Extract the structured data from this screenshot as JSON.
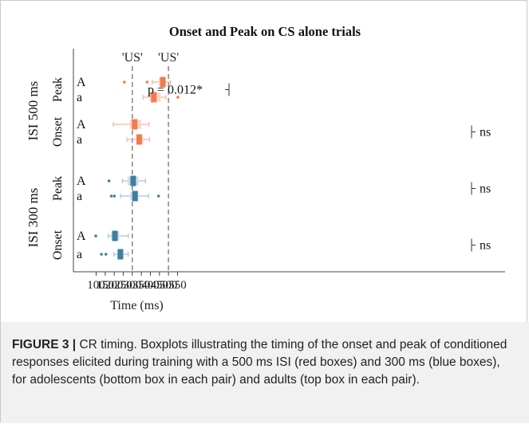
{
  "chart_data": {
    "type": "boxplot",
    "title": "Onset and Peak on CS alone trials",
    "xlabel": "Time (ms)",
    "xlim": [
      75,
      555
    ],
    "xticks": [
      100,
      150,
      200,
      250,
      300,
      350,
      400,
      450,
      500,
      550
    ],
    "reference_lines": [
      {
        "x": 300,
        "label": "'US'"
      },
      {
        "x": 500,
        "label": "'US'"
      }
    ],
    "groups": [
      {
        "label": "ISI 500 ms",
        "subgroups": [
          {
            "label": "Peak",
            "rows": [
              {
                "age": "A",
                "color": "red",
                "whisker": [
                  410,
                  510
                ],
                "box": [
                  448,
                  480
                ],
                "median": 469,
                "outliers": [
                  256,
                  382
                ]
              },
              {
                "age": "a",
                "color": "red",
                "whisker": [
                  360,
                  486
                ],
                "box": [
                  395,
                  457
                ],
                "median": 419,
                "outliers": [
                  552
                ]
              }
            ],
            "annotation": "p = 0.012*"
          },
          {
            "label": "Onset",
            "rows": [
              {
                "age": "A",
                "color": "red",
                "whisker": [
                  195,
                  392
                ],
                "box": [
                  286,
                  349
                ],
                "median": 313,
                "outliers": []
              },
              {
                "age": "a",
                "color": "red",
                "whisker": [
                  270,
                  396
                ],
                "box": [
                  322,
                  360
                ],
                "median": 338,
                "outliers": []
              }
            ],
            "annotation": "ns"
          }
        ]
      },
      {
        "label": "ISI 300 ms",
        "subgroups": [
          {
            "label": "Peak",
            "rows": [
              {
                "age": "A",
                "color": "blue",
                "whisker": [
                  245,
                  373
                ],
                "box": [
                  273,
                  335
                ],
                "median": 305,
                "outliers": [
                  171
                ]
              },
              {
                "age": "a",
                "color": "blue",
                "whisker": [
                  235,
                  390
                ],
                "box": [
                  288,
                  334
                ],
                "median": 315,
                "outliers": [
                  184,
                  201,
                  445
                ]
              }
            ],
            "annotation": "ns"
          },
          {
            "label": "Onset",
            "rows": [
              {
                "age": "A",
                "color": "blue",
                "whisker": [
                  167,
                  278
                ],
                "box": [
                  184,
                  228
                ],
                "median": 204,
                "outliers": [
                  98
                ]
              },
              {
                "age": "a",
                "color": "blue",
                "whisker": [
                  198,
                  277
                ],
                "box": [
                  218,
                  251
                ],
                "median": 234,
                "outliers": [
                  129,
                  154
                ]
              }
            ],
            "annotation": "ns"
          }
        ]
      }
    ]
  },
  "caption": {
    "figure_label": "FIGURE 3 |",
    "text": " CR timing. Boxplots illustrating the timing of the onset and peak of conditioned responses elicited during training with a 500 ms ISI (red boxes) and 300 ms (blue boxes), for adolescents (bottom box in each pair) and adults (top box in each pair)."
  },
  "colors": {
    "red_box": "#fbd6c9",
    "red_median": "#ef7b52",
    "red_whisker": "#f6b49c",
    "blue_box": "#d3e0e9",
    "blue_median": "#3f7fa2",
    "blue_whisker": "#a8c2d4",
    "ref_line": "#8c8c8c"
  }
}
